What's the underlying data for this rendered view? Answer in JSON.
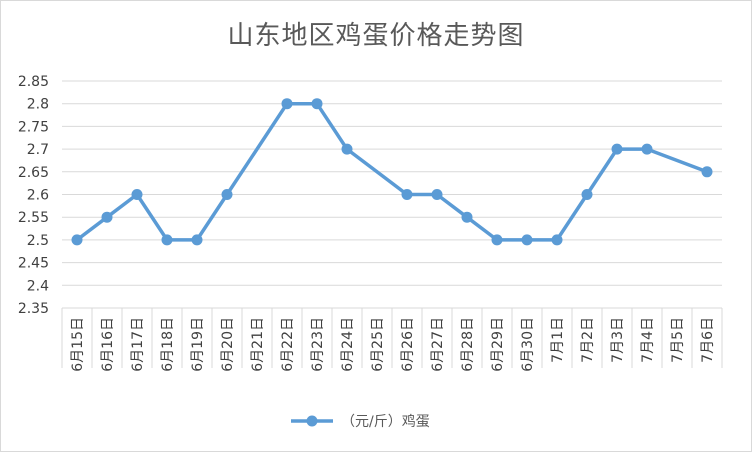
{
  "chart_data": {
    "type": "line",
    "title": "山东地区鸡蛋价格走势图",
    "xlabel": "",
    "ylabel": "",
    "categories": [
      "6月15日",
      "6月16日",
      "6月17日",
      "6月18日",
      "6月19日",
      "6月20日",
      "6月21日",
      "6月22日",
      "6月23日",
      "6月24日",
      "6月25日",
      "6月26日",
      "6月27日",
      "6月28日",
      "6月29日",
      "6月30日",
      "7月1日",
      "7月2日",
      "7月3日",
      "7月4日",
      "7月5日",
      "7月6日"
    ],
    "series": [
      {
        "name": "（元/斤）鸡蛋",
        "color": "#5b9bd5",
        "values": [
          2.5,
          2.55,
          2.6,
          2.5,
          2.5,
          2.6,
          null,
          2.8,
          2.8,
          2.7,
          null,
          2.6,
          2.6,
          2.55,
          2.5,
          2.5,
          2.5,
          2.6,
          2.7,
          2.7,
          null,
          2.65
        ]
      }
    ],
    "yticks": [
      "2.35",
      "2.4",
      "2.45",
      "2.5",
      "2.55",
      "2.6",
      "2.65",
      "2.7",
      "2.75",
      "2.8",
      "2.85"
    ],
    "ylim": [
      2.35,
      2.85
    ],
    "grid": true,
    "legend_position": "bottom"
  }
}
